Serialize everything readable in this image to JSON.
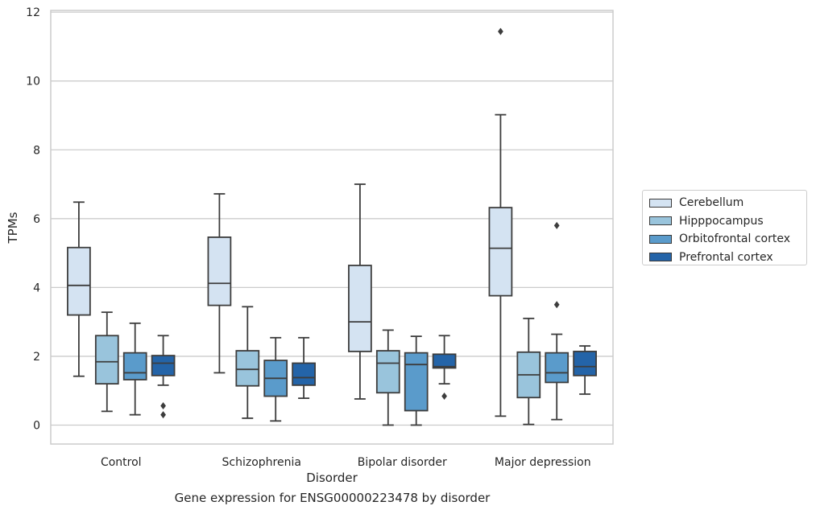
{
  "chart_data": {
    "type": "box",
    "caption": "Gene expression for ENSG00000223478 by disorder",
    "xlabel": "Disorder",
    "ylabel": "TPMs",
    "ylim": [
      -0.55,
      12.05
    ],
    "yticks": [
      0,
      2,
      4,
      6,
      8,
      10,
      12
    ],
    "grid": true,
    "legend_position": "right",
    "categories": [
      "Control",
      "Schizophrenia",
      "Bipolar disorder",
      "Major depression"
    ],
    "series": [
      {
        "name": "Cerebellum",
        "color": "#d4e3f2",
        "boxes": [
          {
            "whisker_low": 1.42,
            "q1": 3.2,
            "median": 4.06,
            "q3": 5.16,
            "whisker_high": 6.48,
            "outliers": []
          },
          {
            "whisker_low": 1.52,
            "q1": 3.48,
            "median": 4.12,
            "q3": 5.46,
            "whisker_high": 6.72,
            "outliers": []
          },
          {
            "whisker_low": 0.76,
            "q1": 2.14,
            "median": 3.0,
            "q3": 4.64,
            "whisker_high": 7.0,
            "outliers": []
          },
          {
            "whisker_low": 0.26,
            "q1": 3.76,
            "median": 5.14,
            "q3": 6.32,
            "whisker_high": 9.02,
            "outliers": [
              11.44
            ]
          }
        ]
      },
      {
        "name": "Hipppocampus",
        "color": "#99c4dc",
        "boxes": [
          {
            "whisker_low": 0.4,
            "q1": 1.2,
            "median": 1.84,
            "q3": 2.6,
            "whisker_high": 3.28,
            "outliers": []
          },
          {
            "whisker_low": 0.2,
            "q1": 1.14,
            "median": 1.62,
            "q3": 2.16,
            "whisker_high": 3.44,
            "outliers": []
          },
          {
            "whisker_low": 0.0,
            "q1": 0.94,
            "median": 1.8,
            "q3": 2.16,
            "whisker_high": 2.76,
            "outliers": []
          },
          {
            "whisker_low": 0.02,
            "q1": 0.8,
            "median": 1.46,
            "q3": 2.12,
            "whisker_high": 3.1,
            "outliers": []
          }
        ]
      },
      {
        "name": "Orbitofrontal cortex",
        "color": "#5a9bcb",
        "boxes": [
          {
            "whisker_low": 0.3,
            "q1": 1.32,
            "median": 1.52,
            "q3": 2.1,
            "whisker_high": 2.96,
            "outliers": []
          },
          {
            "whisker_low": 0.12,
            "q1": 0.84,
            "median": 1.36,
            "q3": 1.88,
            "whisker_high": 2.54,
            "outliers": []
          },
          {
            "whisker_low": 0.0,
            "q1": 0.42,
            "median": 1.76,
            "q3": 2.1,
            "whisker_high": 2.58,
            "outliers": []
          },
          {
            "whisker_low": 0.16,
            "q1": 1.24,
            "median": 1.52,
            "q3": 2.1,
            "whisker_high": 2.64,
            "outliers": [
              3.5,
              5.8
            ]
          }
        ]
      },
      {
        "name": "Prefrontal cortex",
        "color": "#2464a8",
        "boxes": [
          {
            "whisker_low": 1.16,
            "q1": 1.44,
            "median": 1.8,
            "q3": 2.02,
            "whisker_high": 2.6,
            "outliers": [
              0.3,
              0.56
            ]
          },
          {
            "whisker_low": 0.78,
            "q1": 1.16,
            "median": 1.38,
            "q3": 1.8,
            "whisker_high": 2.54,
            "outliers": []
          },
          {
            "whisker_low": 1.2,
            "q1": 1.66,
            "median": 1.7,
            "q3": 2.06,
            "whisker_high": 2.6,
            "outliers": [
              0.84
            ]
          },
          {
            "whisker_low": 0.9,
            "q1": 1.44,
            "median": 1.7,
            "q3": 2.14,
            "whisker_high": 2.3,
            "outliers": []
          }
        ]
      }
    ]
  }
}
